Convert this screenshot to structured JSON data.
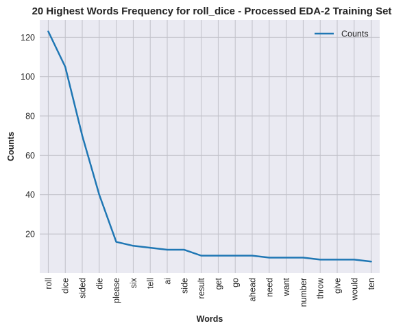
{
  "chart_data": {
    "type": "line",
    "title": "20 Highest Words Frequency for roll_dice - Processed EDA-2 Training Set",
    "xlabel": "Words",
    "ylabel": "Counts",
    "categories": [
      "roll",
      "dice",
      "sided",
      "die",
      "please",
      "six",
      "tell",
      "ai",
      "side",
      "result",
      "get",
      "go",
      "ahead",
      "need",
      "want",
      "number",
      "throw",
      "give",
      "would",
      "ten"
    ],
    "series": [
      {
        "name": "Counts",
        "values": [
          123,
          105,
          70,
          40,
          16,
          14,
          13,
          12,
          12,
          9,
          9,
          9,
          9,
          8,
          8,
          8,
          7,
          7,
          7,
          6
        ],
        "color": "#1f77b4"
      }
    ],
    "yticks": [
      20,
      40,
      60,
      80,
      100,
      120
    ],
    "ylim": [
      0.15,
      128.85
    ],
    "grid": true,
    "legend_position": "top-right",
    "background": "#eaeaf2",
    "grid_color": "#c0c0c8"
  }
}
